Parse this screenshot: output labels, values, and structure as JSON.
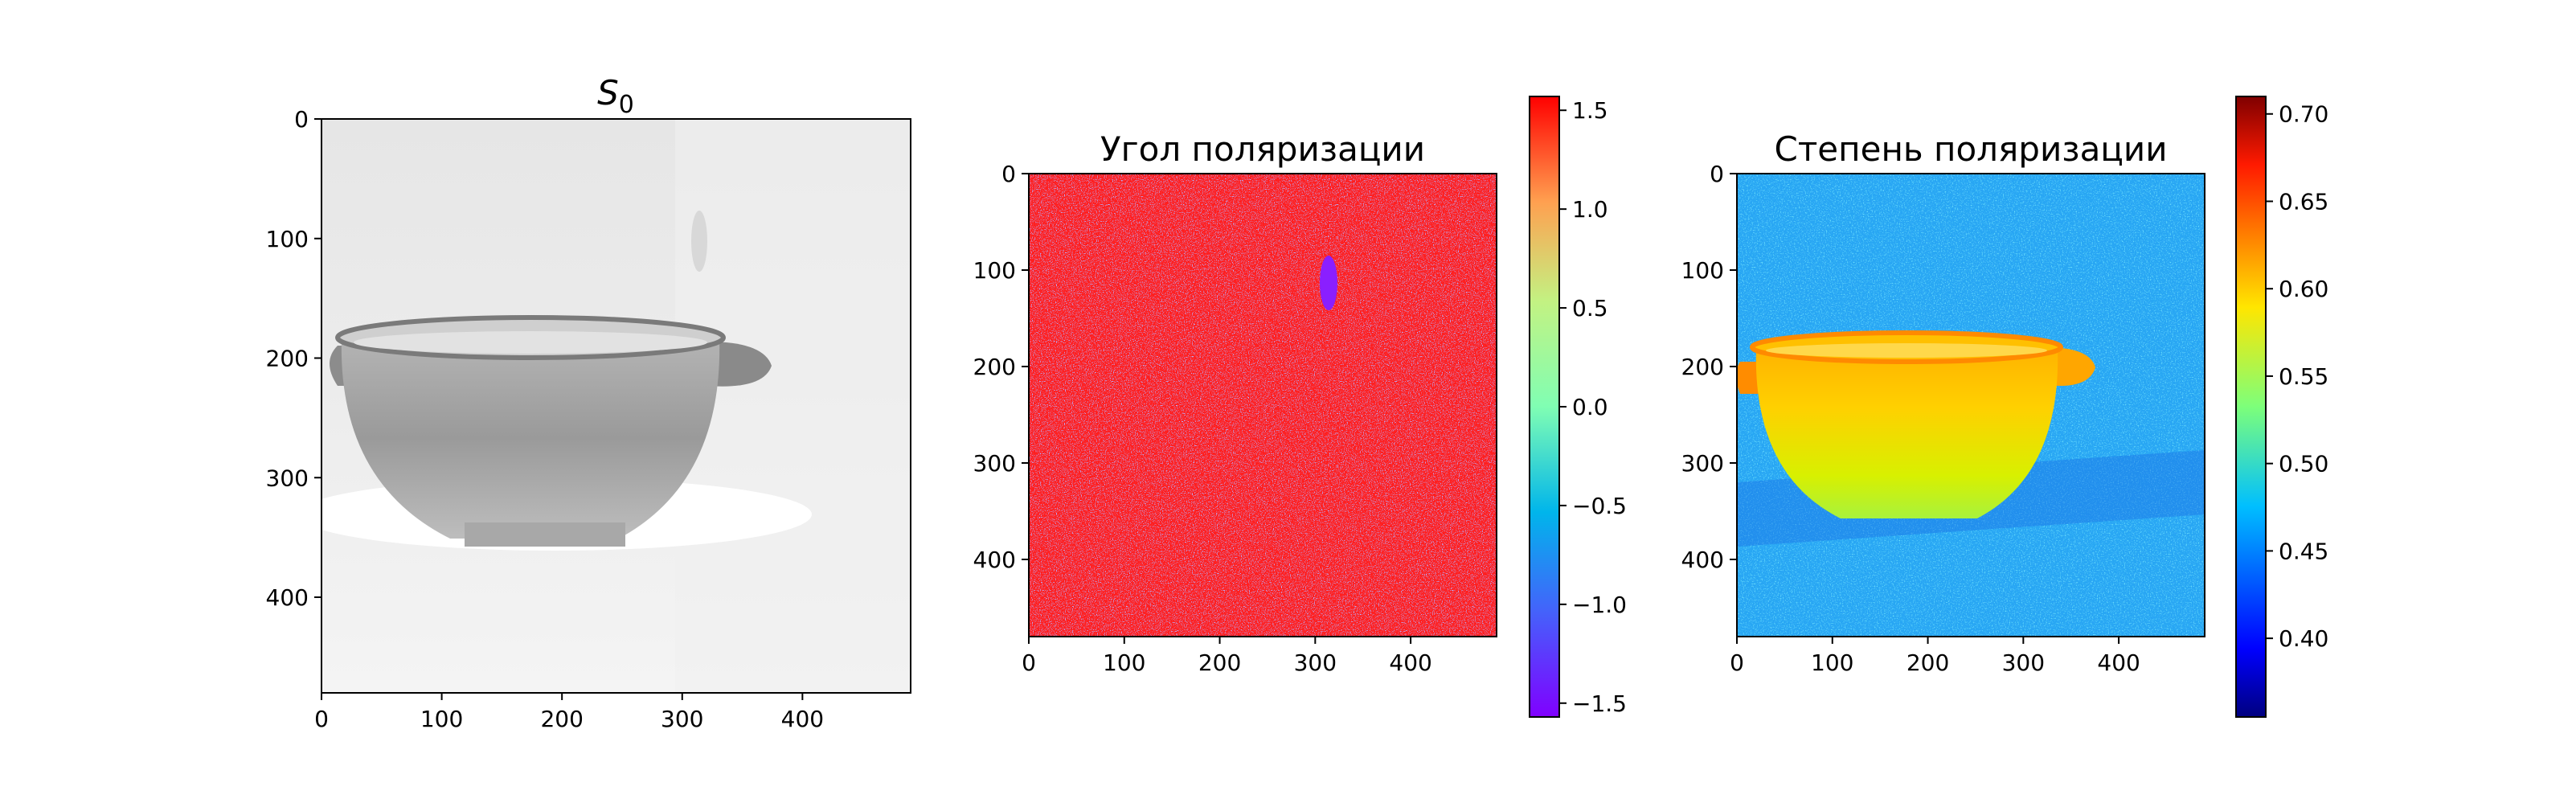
{
  "chart_data": [
    {
      "type": "heatmap",
      "title_symbol": "S",
      "title_subscript": "0",
      "colormap": "gray",
      "xlim": [
        0,
        490
      ],
      "ylim": [
        0,
        480
      ],
      "xticks": [
        0,
        100,
        200,
        300,
        400
      ],
      "yticks": [
        0,
        100,
        200,
        300,
        400
      ],
      "grid": false
    },
    {
      "type": "heatmap",
      "title": "Угол поляризации",
      "colormap": "rainbow",
      "xlim": [
        0,
        490
      ],
      "ylim": [
        0,
        480
      ],
      "xticks": [
        0,
        100,
        200,
        300,
        400
      ],
      "yticks": [
        0,
        100,
        200,
        300,
        400
      ],
      "colorbar": {
        "range": [
          -1.57,
          1.57
        ],
        "ticks": [
          1.5,
          1.0,
          0.5,
          0.0,
          -0.5,
          -1.0,
          -1.5
        ],
        "tick_labels": [
          "1.5",
          "1.0",
          "0.5",
          "0.0",
          "−0.5",
          "−1.0",
          "−1.5"
        ]
      },
      "grid": false
    },
    {
      "type": "heatmap",
      "title": "Степень поляризации",
      "colormap": "jet",
      "xlim": [
        0,
        490
      ],
      "ylim": [
        0,
        480
      ],
      "xticks": [
        0,
        100,
        200,
        300,
        400
      ],
      "yticks": [
        0,
        100,
        200,
        300,
        400
      ],
      "colorbar": {
        "range": [
          0.355,
          0.71
        ],
        "ticks": [
          0.7,
          0.65,
          0.6,
          0.55,
          0.5,
          0.45,
          0.4
        ],
        "tick_labels": [
          "0.70",
          "0.65",
          "0.60",
          "0.55",
          "0.50",
          "0.45",
          "0.40"
        ]
      },
      "grid": false
    }
  ]
}
